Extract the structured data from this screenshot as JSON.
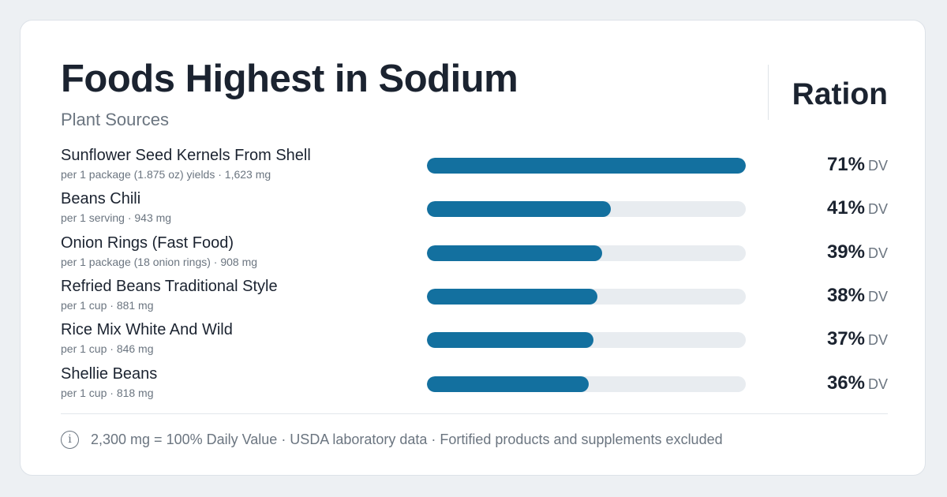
{
  "header": {
    "title": "Foods Highest in Sodium",
    "subtitle": "Plant Sources",
    "brand": "Ration"
  },
  "colors": {
    "bar_fill": "#13709f",
    "bar_track": "#e8ecf0",
    "text_primary": "#1b2330",
    "text_secondary": "#6b7580",
    "background": "#edf0f3"
  },
  "chart_data": {
    "type": "bar",
    "orientation": "horizontal",
    "unit_label": "DV",
    "xlim": [
      0,
      71
    ],
    "categories": [
      "Sunflower Seed Kernels From Shell",
      "Beans Chili",
      "Onion Rings (Fast Food)",
      "Refried Beans Traditional Style",
      "Rice Mix White And Wild",
      "Shellie Beans"
    ],
    "values": [
      71,
      41,
      39,
      38,
      37,
      36
    ],
    "rows": [
      {
        "name": "Sunflower Seed Kernels From Shell",
        "detail": "per 1 package (1.875 oz) yields · 1,623 mg",
        "value": 71,
        "value_label": "71%",
        "unit": "DV"
      },
      {
        "name": "Beans Chili",
        "detail": "per 1 serving · 943 mg",
        "value": 41,
        "value_label": "41%",
        "unit": "DV"
      },
      {
        "name": "Onion Rings (Fast Food)",
        "detail": "per 1 package (18 onion rings) · 908 mg",
        "value": 39,
        "value_label": "39%",
        "unit": "DV"
      },
      {
        "name": "Refried Beans Traditional Style",
        "detail": "per 1 cup · 881 mg",
        "value": 38,
        "value_label": "38%",
        "unit": "DV"
      },
      {
        "name": "Rice Mix White And Wild",
        "detail": "per 1 cup · 846 mg",
        "value": 37,
        "value_label": "37%",
        "unit": "DV"
      },
      {
        "name": "Shellie Beans",
        "detail": "per 1 cup · 818 mg",
        "value": 36,
        "value_label": "36%",
        "unit": "DV"
      }
    ]
  },
  "footer": {
    "icon": "info-icon",
    "icon_glyph": "i",
    "text": "2,300 mg = 100% Daily Value · USDA laboratory data · Fortified products and supplements excluded"
  }
}
